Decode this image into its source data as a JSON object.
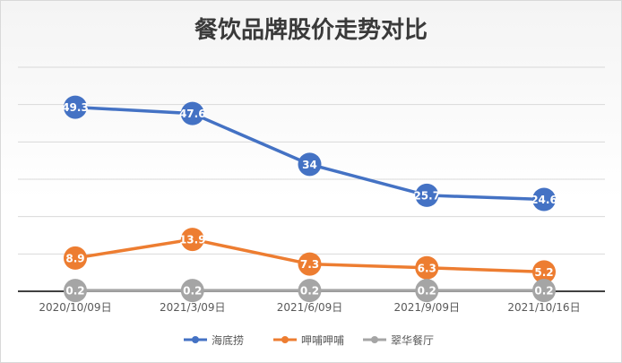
{
  "chart_data": {
    "type": "line",
    "title": "餐饮品牌股价走势对比",
    "categories": [
      "2020/10/09日",
      "2021/3/09日",
      "2021/6/09日",
      "2021/9/09日",
      "2021/10/16日"
    ],
    "ylim": [
      0,
      60
    ],
    "grid": true,
    "legend": "bottom",
    "series": [
      {
        "name": "海底捞",
        "color": "#4472c4",
        "values": [
          49.3,
          47.6,
          34,
          25.7,
          24.6
        ],
        "labels": [
          "49.3",
          "47.6",
          "34",
          "25.7",
          "24.6"
        ]
      },
      {
        "name": "呷哺呷哺",
        "color": "#ed7d31",
        "values": [
          8.9,
          13.9,
          7.3,
          6.3,
          5.2
        ],
        "labels": [
          "8.9",
          "13.9",
          "7.3",
          "6.3",
          "5.2"
        ]
      },
      {
        "name": "翠华餐厅",
        "color": "#a5a5a5",
        "values": [
          0.2,
          0.2,
          0.2,
          0.2,
          0.2
        ],
        "labels": [
          "0.2",
          "0.2",
          "0.2",
          "0.2",
          "0.2"
        ]
      }
    ]
  }
}
